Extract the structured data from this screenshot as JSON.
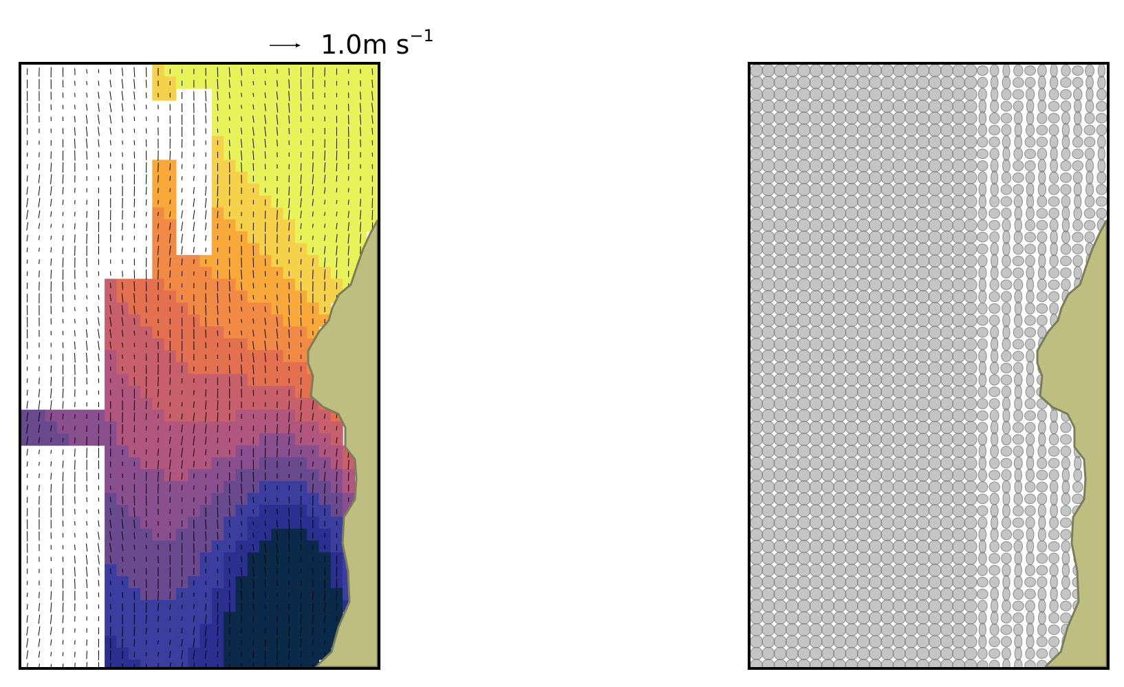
{
  "reference_arrow": {
    "value": "1.0",
    "unit_base": "m s",
    "unit_exponent": "−1"
  },
  "panels": [
    {
      "kind": "current-velocity-field",
      "land_color": "#bdbe80",
      "colormap": [
        "#0b2a4a",
        "#2b2f8f",
        "#3b3e9e",
        "#6a4a8f",
        "#8a4f8f",
        "#b0567f",
        "#c8606c",
        "#e3704f",
        "#f08a45",
        "#f8a93a",
        "#f6d24a",
        "#e8f35a"
      ]
    },
    {
      "kind": "uncertainty-ellipse-grid",
      "land_color": "#bdbe80",
      "ellipse_color": "#9a9a9a"
    }
  ]
}
